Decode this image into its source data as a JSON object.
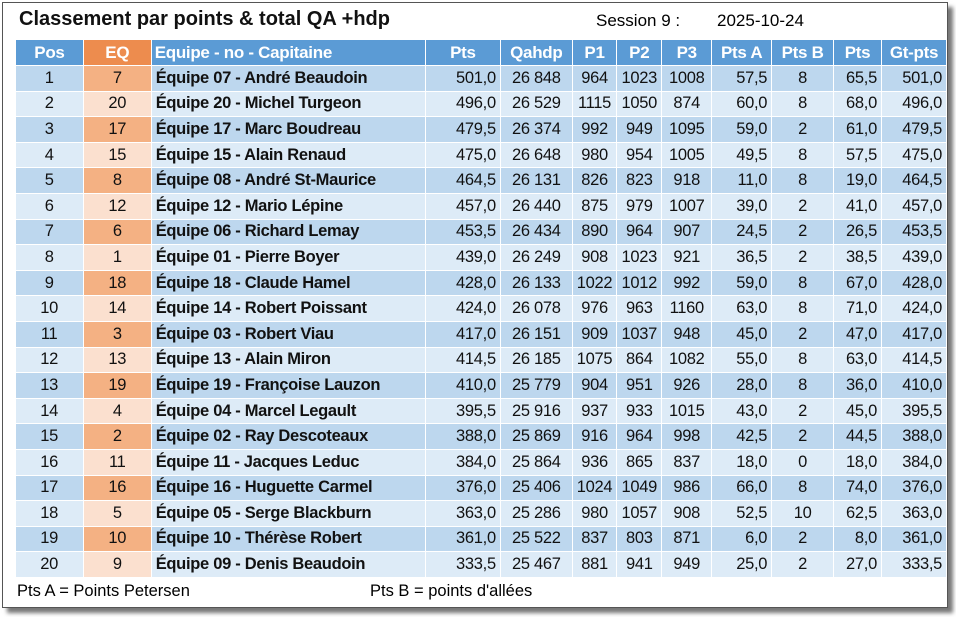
{
  "header": {
    "title": "Classement par points & total QA +hdp",
    "session": "Session 9 :",
    "date": "2025-10-24"
  },
  "table": {
    "columns": [
      "Pos",
      "EQ",
      "Equipe - no - Capitaine",
      "Pts",
      "Qahdp",
      "P1",
      "P2",
      "P3",
      "Pts A",
      "Pts B",
      "Pts",
      "Gt-pts"
    ],
    "rows": [
      [
        "1",
        "7",
        "Équipe 07 - André Beaudoin",
        "501,0",
        "26 848",
        "964",
        "1023",
        "1008",
        "57,5",
        "8",
        "65,5",
        "501,0"
      ],
      [
        "2",
        "20",
        "Équipe 20 - Michel Turgeon",
        "496,0",
        "26 529",
        "1115",
        "1050",
        "874",
        "60,0",
        "8",
        "68,0",
        "496,0"
      ],
      [
        "3",
        "17",
        "Équipe 17 - Marc Boudreau",
        "479,5",
        "26 374",
        "992",
        "949",
        "1095",
        "59,0",
        "2",
        "61,0",
        "479,5"
      ],
      [
        "4",
        "15",
        "Équipe 15 - Alain Renaud",
        "475,0",
        "26 648",
        "980",
        "954",
        "1005",
        "49,5",
        "8",
        "57,5",
        "475,0"
      ],
      [
        "5",
        "8",
        "Équipe 08 - André St-Maurice",
        "464,5",
        "26 131",
        "826",
        "823",
        "918",
        "11,0",
        "8",
        "19,0",
        "464,5"
      ],
      [
        "6",
        "12",
        "Équipe 12 - Mario Lépine",
        "457,0",
        "26 440",
        "875",
        "979",
        "1007",
        "39,0",
        "2",
        "41,0",
        "457,0"
      ],
      [
        "7",
        "6",
        "Équipe 06 - Richard Lemay",
        "453,5",
        "26 434",
        "890",
        "964",
        "907",
        "24,5",
        "2",
        "26,5",
        "453,5"
      ],
      [
        "8",
        "1",
        "Équipe 01 - Pierre Boyer",
        "439,0",
        "26 249",
        "908",
        "1023",
        "921",
        "36,5",
        "2",
        "38,5",
        "439,0"
      ],
      [
        "9",
        "18",
        "Équipe 18 - Claude Hamel",
        "428,0",
        "26 133",
        "1022",
        "1012",
        "992",
        "59,0",
        "8",
        "67,0",
        "428,0"
      ],
      [
        "10",
        "14",
        "Équipe 14 - Robert Poissant",
        "424,0",
        "26 078",
        "976",
        "963",
        "1160",
        "63,0",
        "8",
        "71,0",
        "424,0"
      ],
      [
        "11",
        "3",
        "Équipe 03 - Robert Viau",
        "417,0",
        "26 151",
        "909",
        "1037",
        "948",
        "45,0",
        "2",
        "47,0",
        "417,0"
      ],
      [
        "12",
        "13",
        "Équipe 13 - Alain Miron",
        "414,5",
        "26 185",
        "1075",
        "864",
        "1082",
        "55,0",
        "8",
        "63,0",
        "414,5"
      ],
      [
        "13",
        "19",
        "Équipe 19 - Françoise Lauzon",
        "410,0",
        "25 779",
        "904",
        "951",
        "926",
        "28,0",
        "8",
        "36,0",
        "410,0"
      ],
      [
        "14",
        "4",
        "Équipe 04 - Marcel Legault",
        "395,5",
        "25 916",
        "937",
        "933",
        "1015",
        "43,0",
        "2",
        "45,0",
        "395,5"
      ],
      [
        "15",
        "2",
        "Équipe 02 - Ray Descoteaux",
        "388,0",
        "25 869",
        "916",
        "964",
        "998",
        "42,5",
        "2",
        "44,5",
        "388,0"
      ],
      [
        "16",
        "11",
        "Équipe 11 - Jacques Leduc",
        "384,0",
        "25 864",
        "936",
        "865",
        "837",
        "18,0",
        "0",
        "18,0",
        "384,0"
      ],
      [
        "17",
        "16",
        "Équipe 16 - Huguette Carmel",
        "376,0",
        "25 406",
        "1024",
        "1049",
        "986",
        "66,0",
        "8",
        "74,0",
        "376,0"
      ],
      [
        "18",
        "5",
        "Équipe 05 - Serge Blackburn",
        "363,0",
        "25 286",
        "980",
        "1057",
        "908",
        "52,5",
        "10",
        "62,5",
        "363,0"
      ],
      [
        "19",
        "10",
        "Équipe 10 - Thérèse Robert",
        "361,0",
        "25 522",
        "837",
        "803",
        "871",
        "6,0",
        "2",
        "8,0",
        "361,0"
      ],
      [
        "20",
        "9",
        "Équipe 09 - Denis Beaudoin",
        "333,5",
        "25 467",
        "881",
        "941",
        "949",
        "25,0",
        "2",
        "27,0",
        "333,5"
      ]
    ]
  },
  "footer": {
    "note_a": "Pts A = Points Petersen",
    "note_b": "Pts B = points d'allées"
  }
}
